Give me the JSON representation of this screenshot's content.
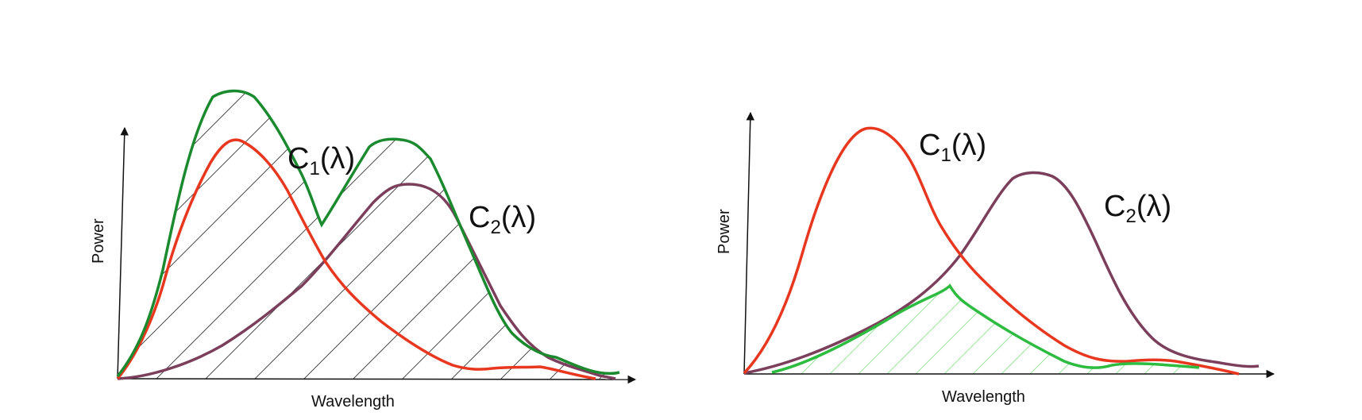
{
  "colors": {
    "c1": "#e8371f",
    "c2": "#7b3f5c",
    "sum": "#1b8a2e",
    "product": "#2dbb40",
    "axis": "#111111",
    "hatch": "#333333",
    "hatch_light": "#9be39e"
  },
  "left_panel": {
    "x_axis_label": "Wavelength",
    "y_axis_label": "Power",
    "label_c1": {
      "main": "C",
      "sub": "1",
      "tail": "(λ)"
    },
    "label_c2": {
      "main": "C",
      "sub": "2",
      "tail": "(λ)"
    }
  },
  "right_panel": {
    "x_axis_label": "Wavelength",
    "y_axis_label": "Power",
    "label_c1": {
      "main": "C",
      "sub": "1",
      "tail": "(λ)"
    },
    "label_c2": {
      "main": "C",
      "sub": "2",
      "tail": "(λ)"
    }
  }
}
